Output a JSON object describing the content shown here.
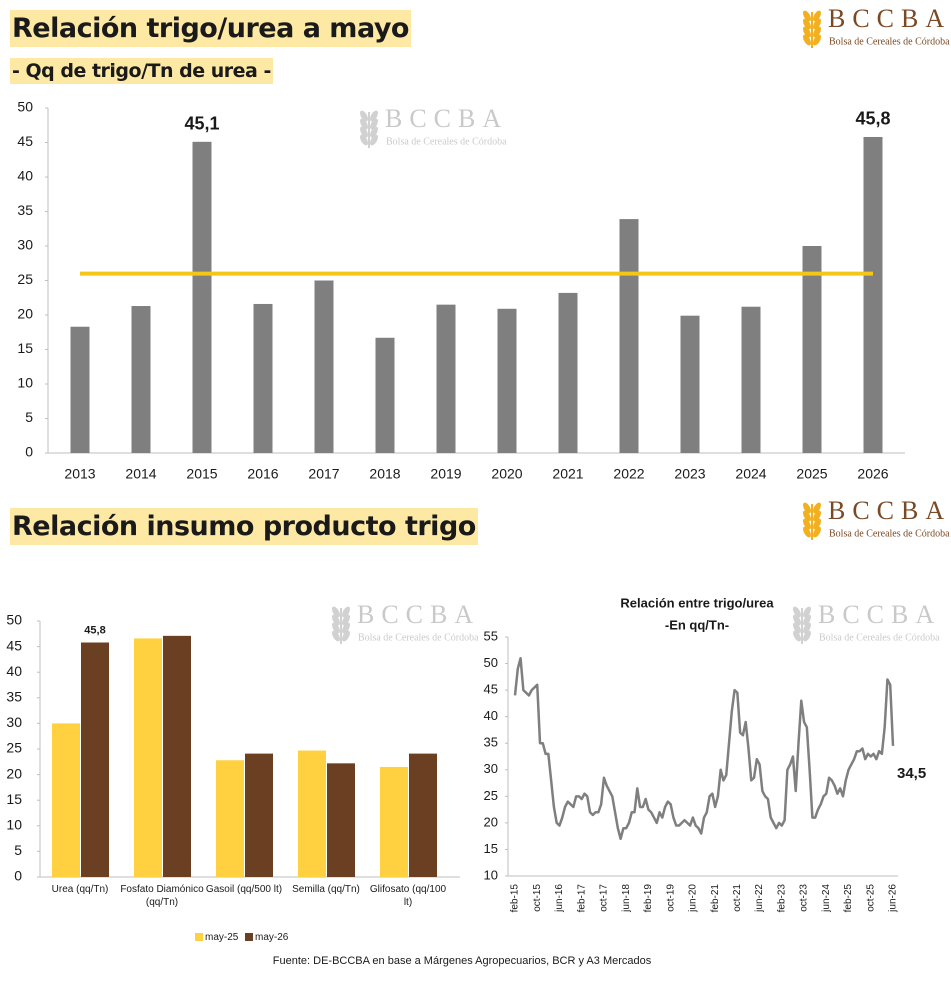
{
  "logo": {
    "name": "BCCBA",
    "subtitle": "Bolsa de Cereales de Córdoba"
  },
  "section_title": "Relación insumo producto trigo",
  "source": "Fuente: DE-BCCBA en base a Márgenes Agropecuarios, BCR y A3 Mercados",
  "chart_data": [
    {
      "type": "bar",
      "title": "Relación trigo/urea a mayo",
      "subtitle": "- Qq de trigo/Tn de urea -",
      "categories": [
        "2013",
        "2014",
        "2015",
        "2016",
        "2017",
        "2018",
        "2019",
        "2020",
        "2021",
        "2022",
        "2023",
        "2024",
        "2025",
        "2026"
      ],
      "values": [
        18.3,
        21.3,
        45.1,
        21.6,
        25,
        16.7,
        21.5,
        20.9,
        23.2,
        33.9,
        19.9,
        21.2,
        30,
        45.8
      ],
      "value_labels": [
        null,
        null,
        "45,1",
        null,
        null,
        null,
        null,
        null,
        null,
        null,
        null,
        null,
        null,
        "45,8"
      ],
      "color": "#7f7f7f",
      "reference_line": {
        "value": 26,
        "color": "#f5c518"
      },
      "ylim": [
        0,
        50
      ],
      "yticks": [
        0,
        5,
        10,
        15,
        20,
        25,
        30,
        35,
        40,
        45,
        50
      ]
    },
    {
      "type": "grouped_bar",
      "categories": [
        "Urea (qq/Tn)",
        "Fosfato Diamónico (qq/Tn)",
        "Gasoil (qq/500 lt)",
        "Semilla (qq/Tn)",
        "Glifosato (qq/100 lt)"
      ],
      "series": [
        {
          "name": "may-25",
          "color": "#ffd040",
          "values": [
            30,
            46.6,
            22.8,
            24.7,
            21.5
          ]
        },
        {
          "name": "may-26",
          "color": "#6b3f22",
          "values": [
            45.8,
            47.1,
            24.1,
            22.2,
            24.1
          ],
          "value_labels": [
            "45,8",
            null,
            null,
            null,
            null
          ]
        }
      ],
      "ylim": [
        0,
        50
      ],
      "yticks": [
        0,
        5,
        10,
        15,
        20,
        25,
        30,
        35,
        40,
        45,
        50
      ],
      "legend": "bottom"
    },
    {
      "type": "line",
      "title": "Relación entre trigo/urea",
      "subtitle": "-En qq/Tn-",
      "color": "#7f7f7f",
      "categories": [
        "feb-15",
        null,
        null,
        null,
        null,
        null,
        null,
        null,
        "oct-15",
        null,
        null,
        null,
        null,
        null,
        null,
        null,
        "jun-16",
        null,
        null,
        null,
        null,
        null,
        null,
        null,
        "feb-17",
        null,
        null,
        null,
        null,
        null,
        null,
        null,
        "oct-17",
        null,
        null,
        null,
        null,
        null,
        null,
        null,
        "jun-18",
        null,
        null,
        null,
        null,
        null,
        null,
        null,
        "feb-19",
        null,
        null,
        null,
        null,
        null,
        null,
        null,
        "oct-19",
        null,
        null,
        null,
        null,
        null,
        null,
        null,
        "jun-20",
        null,
        null,
        null,
        null,
        null,
        null,
        null,
        "feb-21",
        null,
        null,
        null,
        null,
        null,
        null,
        null,
        "oct-21",
        null,
        null,
        null,
        null,
        null,
        null,
        null,
        "jun-22",
        null,
        null,
        null,
        null,
        null,
        null,
        null,
        "feb-23",
        null,
        null,
        null,
        null,
        null,
        null,
        null,
        "oct-23",
        null,
        null,
        null,
        null,
        null,
        null,
        null,
        "jun-24",
        null,
        null,
        null,
        null,
        null,
        null,
        null,
        "feb-25",
        null,
        null,
        null,
        null,
        null,
        null,
        null,
        "oct-25",
        null,
        null,
        null,
        null,
        null,
        null,
        null,
        "jun-26"
      ],
      "values": [
        44,
        49,
        51,
        45,
        44.5,
        44,
        45,
        45.5,
        46,
        35,
        35,
        33,
        33,
        28,
        23,
        20,
        19.5,
        21,
        23,
        24,
        23.5,
        23,
        25,
        25,
        24.5,
        25.5,
        25,
        22,
        21.5,
        22,
        22,
        23.5,
        28.5,
        27,
        26,
        25,
        22,
        19,
        17,
        19,
        19,
        20,
        22,
        22,
        26.5,
        23,
        23,
        24.5,
        22.5,
        22,
        21,
        20,
        22,
        21,
        23,
        24,
        23.5,
        21,
        19.5,
        19.5,
        20,
        20.5,
        20,
        19.5,
        21,
        19.5,
        19,
        18,
        21,
        22,
        25,
        25.5,
        23,
        25,
        30,
        28,
        29,
        35,
        41,
        45,
        44.5,
        37,
        36.5,
        39,
        34,
        28,
        28.5,
        32,
        31,
        26,
        25,
        24.5,
        21,
        20,
        19,
        20,
        19.5,
        20.5,
        30,
        31,
        32.5,
        26,
        35,
        43,
        39,
        38,
        30,
        21,
        21,
        22.5,
        23.5,
        25,
        25.5,
        28.5,
        28,
        27,
        25.5,
        26.5,
        25,
        28,
        30,
        31,
        32,
        33.5,
        33.5,
        34,
        32,
        33,
        32.5,
        33,
        32,
        33.5,
        33,
        38,
        47,
        46,
        34.5
      ],
      "value_labels": [
        null,
        null,
        null,
        null,
        null,
        null,
        null,
        null,
        null,
        null,
        null,
        null,
        null,
        null,
        null,
        null,
        null,
        null,
        null,
        null,
        null,
        null,
        null,
        null,
        null,
        null,
        null,
        null,
        null,
        null,
        null,
        null,
        null,
        null,
        null,
        null,
        null,
        null,
        null,
        null,
        null,
        null,
        null,
        null,
        null,
        null,
        null,
        null,
        null,
        null,
        null,
        null,
        null,
        null,
        null,
        null,
        null,
        null,
        null,
        null,
        null,
        null,
        null,
        null,
        null,
        null,
        null,
        null,
        null,
        null,
        null,
        null,
        null,
        null,
        null,
        null,
        null,
        null,
        null,
        null,
        null,
        null,
        null,
        null,
        null,
        null,
        null,
        null,
        null,
        null,
        null,
        null,
        null,
        null,
        null,
        null,
        null,
        null,
        null,
        null,
        null,
        null,
        null,
        null,
        null,
        null,
        null,
        null,
        null,
        null,
        null,
        null,
        null,
        null,
        null,
        null,
        null,
        null,
        null,
        null,
        null,
        null,
        null,
        null,
        null,
        null,
        null,
        null,
        null,
        null,
        null,
        null,
        null,
        null,
        null,
        null,
        "34,5"
      ],
      "ylim": [
        10,
        55
      ],
      "yticks": [
        10,
        15,
        20,
        25,
        30,
        35,
        40,
        45,
        50,
        55
      ]
    }
  ]
}
